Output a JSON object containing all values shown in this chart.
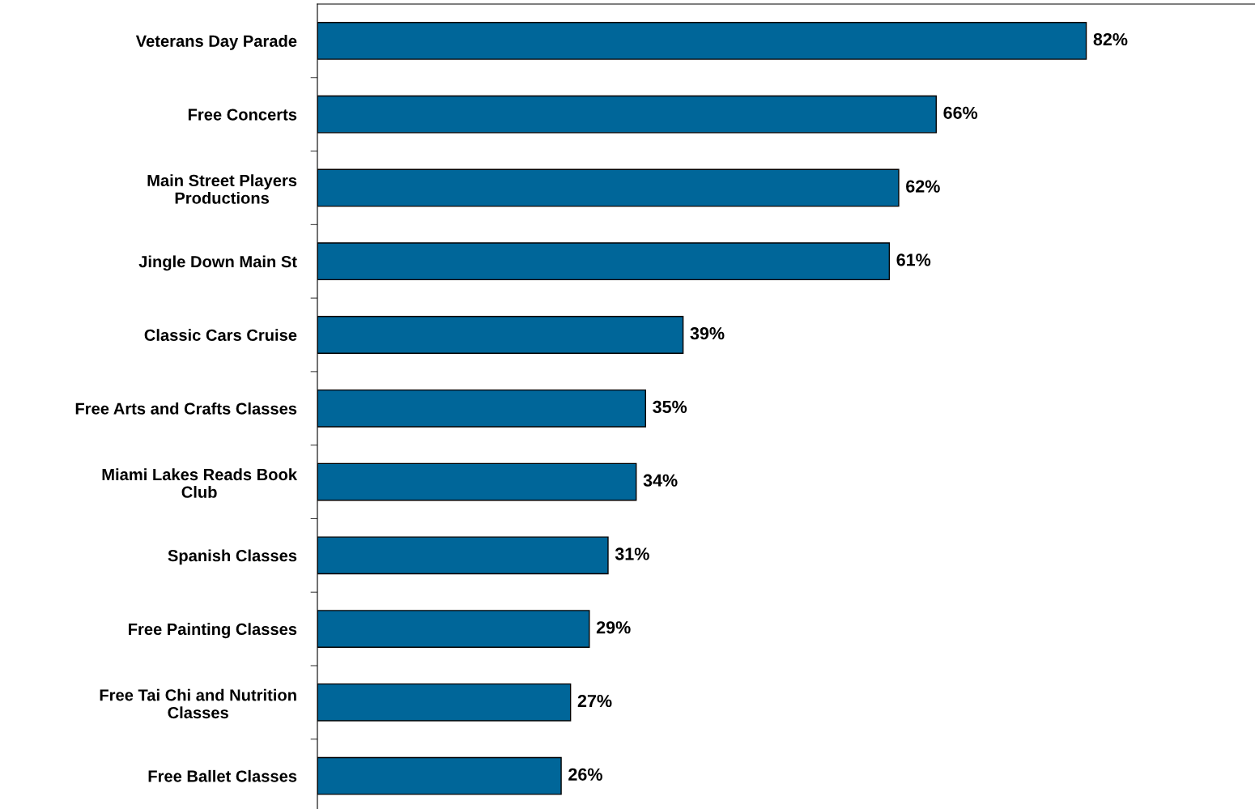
{
  "chart_data": {
    "type": "bar",
    "orientation": "horizontal",
    "categories": [
      "Veterans Day Parade",
      "Free Concerts",
      "Main Street Players\nProductions",
      "Jingle Down Main St",
      "Classic Cars Cruise",
      "Free Arts and Crafts Classes",
      "Miami Lakes Reads Book\nClub",
      "Spanish Classes",
      "Free Painting Classes",
      "Free Tai Chi and Nutrition\nClasses",
      "Free Ballet Classes"
    ],
    "values": [
      82,
      66,
      62,
      61,
      39,
      35,
      34,
      31,
      29,
      27,
      26
    ],
    "value_labels": [
      "82%",
      "66%",
      "62%",
      "61%",
      "39%",
      "35%",
      "34%",
      "31%",
      "29%",
      "27%",
      "26%"
    ],
    "color": "#006699",
    "xlim": [
      0,
      100
    ],
    "grid": false,
    "legend": false,
    "tick_labels": "y"
  }
}
